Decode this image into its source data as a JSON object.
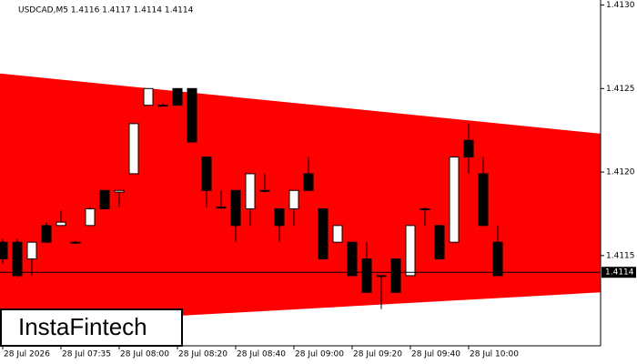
{
  "chart_data": {
    "type": "candlestick",
    "title": "USDCAD,M5  1.4116 1.4117 1.4114 1.4114",
    "categories": [
      "28 Jul 2026",
      null,
      null,
      null,
      "28 Jul 07:35",
      null,
      null,
      null,
      "28 Jul 08:00",
      null,
      null,
      null,
      "28 Jul 08:20",
      null,
      null,
      null,
      "28 Jul 08:40",
      null,
      null,
      null,
      "28 Jul 09:00",
      null,
      null,
      null,
      "28 Jul 09:20",
      null,
      null,
      null,
      "28 Jul 09:40",
      null,
      null,
      null,
      "28 Jul 10:00",
      null,
      null
    ],
    "open": [
      1.41158,
      1.41158,
      1.41148,
      1.41168,
      1.41168,
      1.41158,
      1.41168,
      1.41189,
      1.41188,
      1.41199,
      1.4124,
      1.4124,
      1.4125,
      1.4125,
      1.41209,
      1.41179,
      1.41189,
      1.41178,
      1.41189,
      1.41178,
      1.41178,
      1.41199,
      1.41178,
      1.41158,
      1.41158,
      1.41148,
      1.41138,
      1.41148,
      1.41138,
      1.41178,
      1.41168,
      1.41158,
      1.41219,
      1.41199,
      1.41158
    ],
    "high": [
      1.4116,
      1.4116,
      1.41158,
      1.4117,
      1.41177,
      1.41159,
      1.41179,
      1.41189,
      1.41189,
      1.41229,
      1.4125,
      1.41241,
      1.4125,
      1.4125,
      1.41209,
      1.41189,
      1.41189,
      1.41199,
      1.41199,
      1.41178,
      1.41189,
      1.41209,
      1.41178,
      1.41168,
      1.41158,
      1.41158,
      1.41138,
      1.41148,
      1.41168,
      1.41179,
      1.41168,
      1.41209,
      1.41229,
      1.41209,
      1.41168
    ],
    "low": [
      1.41145,
      1.41137,
      1.41138,
      1.41158,
      1.41168,
      1.41157,
      1.41168,
      1.41178,
      1.41179,
      1.41199,
      1.4124,
      1.4124,
      1.4124,
      1.41218,
      1.41179,
      1.41178,
      1.41158,
      1.41168,
      1.41188,
      1.41158,
      1.41168,
      1.41189,
      1.41148,
      1.41158,
      1.41138,
      1.41128,
      1.41118,
      1.41128,
      1.41138,
      1.41168,
      1.41148,
      1.41158,
      1.41199,
      1.41168,
      1.41138
    ],
    "close": [
      1.41148,
      1.41138,
      1.41158,
      1.41158,
      1.4117,
      1.41158,
      1.41178,
      1.41178,
      1.41189,
      1.41229,
      1.4125,
      1.4124,
      1.4124,
      1.41218,
      1.41189,
      1.41179,
      1.41168,
      1.41199,
      1.41189,
      1.41168,
      1.41189,
      1.41189,
      1.41148,
      1.41168,
      1.41138,
      1.41128,
      1.41138,
      1.41128,
      1.41168,
      1.41178,
      1.41148,
      1.41209,
      1.41209,
      1.41168,
      1.41138
    ],
    "up_color": "#ffffff",
    "down_color": "#000000",
    "pattern_color": "#ff0000",
    "pattern_upper": [
      1.41259,
      1.41223
    ],
    "pattern_lower": [
      1.41108,
      1.41128
    ],
    "current_price": 1.4114,
    "ylim": [
      1.41096,
      1.41303
    ],
    "yticks": [
      {
        "value": 1.413,
        "label": "1.4130"
      },
      1.4125,
      {
        "value": 1.412,
        "label": "1.4120"
      },
      1.4115
    ]
  },
  "logo": "InstaFintech"
}
